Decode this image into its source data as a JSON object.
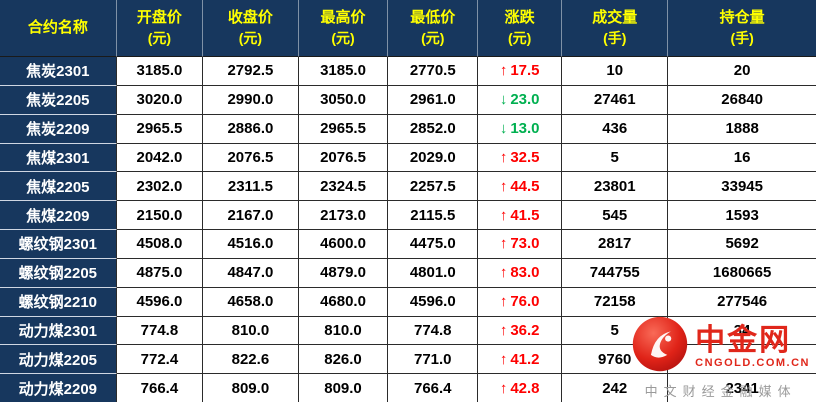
{
  "chart_data": {
    "type": "table",
    "columns": [
      {
        "label": "合约名称",
        "unit": ""
      },
      {
        "label": "开盘价",
        "unit": "(元)"
      },
      {
        "label": "收盘价",
        "unit": "(元)"
      },
      {
        "label": "最高价",
        "unit": "(元)"
      },
      {
        "label": "最低价",
        "unit": "(元)"
      },
      {
        "label": "涨跌",
        "unit": "(元)"
      },
      {
        "label": "成交量",
        "unit": "(手)"
      },
      {
        "label": "持仓量",
        "unit": "(手)"
      }
    ],
    "rows": [
      {
        "name": "焦炭2301",
        "open": "3185.0",
        "close": "2792.5",
        "high": "3185.0",
        "low": "2770.5",
        "direction": "up",
        "change": "17.5",
        "volume": "10",
        "open_interest": "20"
      },
      {
        "name": "焦炭2205",
        "open": "3020.0",
        "close": "2990.0",
        "high": "3050.0",
        "low": "2961.0",
        "direction": "down",
        "change": "23.0",
        "volume": "27461",
        "open_interest": "26840"
      },
      {
        "name": "焦炭2209",
        "open": "2965.5",
        "close": "2886.0",
        "high": "2965.5",
        "low": "2852.0",
        "direction": "down",
        "change": "13.0",
        "volume": "436",
        "open_interest": "1888"
      },
      {
        "name": "焦煤2301",
        "open": "2042.0",
        "close": "2076.5",
        "high": "2076.5",
        "low": "2029.0",
        "direction": "up",
        "change": "32.5",
        "volume": "5",
        "open_interest": "16"
      },
      {
        "name": "焦煤2205",
        "open": "2302.0",
        "close": "2311.5",
        "high": "2324.5",
        "low": "2257.5",
        "direction": "up",
        "change": "44.5",
        "volume": "23801",
        "open_interest": "33945"
      },
      {
        "name": "焦煤2209",
        "open": "2150.0",
        "close": "2167.0",
        "high": "2173.0",
        "low": "2115.5",
        "direction": "up",
        "change": "41.5",
        "volume": "545",
        "open_interest": "1593"
      },
      {
        "name": "螺纹钢2301",
        "open": "4508.0",
        "close": "4516.0",
        "high": "4600.0",
        "low": "4475.0",
        "direction": "up",
        "change": "73.0",
        "volume": "2817",
        "open_interest": "5692"
      },
      {
        "name": "螺纹钢2205",
        "open": "4875.0",
        "close": "4847.0",
        "high": "4879.0",
        "low": "4801.0",
        "direction": "up",
        "change": "83.0",
        "volume": "744755",
        "open_interest": "1680665"
      },
      {
        "name": "螺纹钢2210",
        "open": "4596.0",
        "close": "4658.0",
        "high": "4680.0",
        "low": "4596.0",
        "direction": "up",
        "change": "76.0",
        "volume": "72158",
        "open_interest": "277546"
      },
      {
        "name": "动力煤2301",
        "open": "774.8",
        "close": "810.0",
        "high": "810.0",
        "low": "774.8",
        "direction": "up",
        "change": "36.2",
        "volume": "5",
        "open_interest": "34"
      },
      {
        "name": "动力煤2205",
        "open": "772.4",
        "close": "822.6",
        "high": "826.0",
        "low": "771.0",
        "direction": "up",
        "change": "41.2",
        "volume": "9760",
        "open_interest": ""
      },
      {
        "name": "动力煤2209",
        "open": "766.4",
        "close": "809.0",
        "high": "809.0",
        "low": "766.4",
        "direction": "up",
        "change": "42.8",
        "volume": "242",
        "open_interest": "2341"
      }
    ]
  },
  "icons": {
    "up_arrow": "↑",
    "down_arrow": "↓"
  },
  "colors": {
    "header_bg": "#17375e",
    "header_text": "#ffff00",
    "up": "#fe0000",
    "down": "#00b050",
    "brand_red": "#e0271b"
  },
  "watermark": {
    "brand": "中金网",
    "domain": "CNGOLD.COM.CN",
    "tagline": "中文财经金融媒体"
  }
}
